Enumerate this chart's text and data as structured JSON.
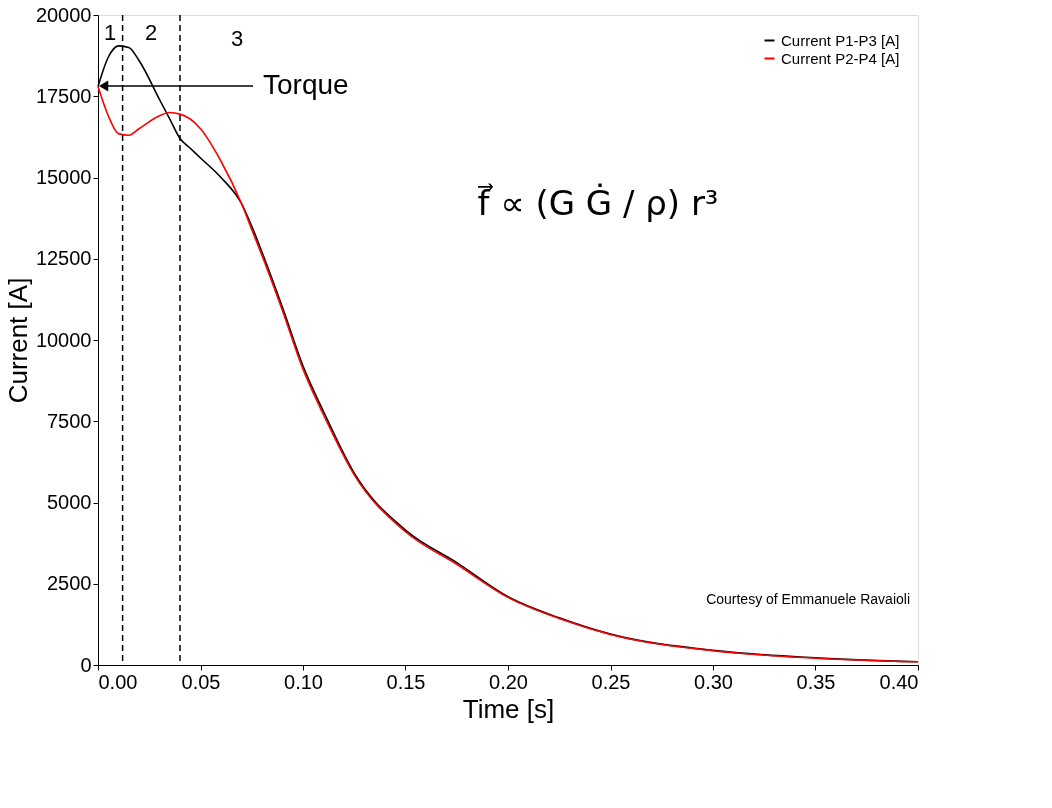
{
  "chart_data": {
    "type": "line",
    "xlabel": "Time [s]",
    "ylabel": "Current [A]",
    "xlim": [
      0,
      0.4
    ],
    "ylim": [
      0,
      20000
    ],
    "xticks": [
      {
        "value": 0,
        "label": "0.00"
      },
      {
        "value": 0.05,
        "label": "0.05"
      },
      {
        "value": 0.1,
        "label": "0.10"
      },
      {
        "value": 0.15,
        "label": "0.15"
      },
      {
        "value": 0.2,
        "label": "0.20"
      },
      {
        "value": 0.25,
        "label": "0.25"
      },
      {
        "value": 0.3,
        "label": "0.30"
      },
      {
        "value": 0.35,
        "label": "0.35"
      },
      {
        "value": 0.4,
        "label": "0.40"
      }
    ],
    "yticks": [
      0,
      2500,
      5000,
      7500,
      10000,
      12500,
      15000,
      17500,
      20000
    ],
    "x": [
      0,
      0.005,
      0.01,
      0.015,
      0.02,
      0.03,
      0.035,
      0.04,
      0.045,
      0.05,
      0.06,
      0.07,
      0.075,
      0.08,
      0.09,
      0.1,
      0.11,
      0.125,
      0.15,
      0.175,
      0.2,
      0.225,
      0.25,
      0.3,
      0.35,
      0.4
    ],
    "series": [
      {
        "name": "Current P1-P3 [A]",
        "color": "#000000",
        "values": [
          17800,
          18700,
          19050,
          19000,
          18600,
          17400,
          16800,
          16200,
          15900,
          15600,
          15000,
          14200,
          13500,
          12700,
          11000,
          9200,
          7800,
          5900,
          4150,
          3150,
          2100,
          1450,
          950,
          450,
          220,
          100
        ]
      },
      {
        "name": "Current P2-P4 [A]",
        "color": "#ff0000",
        "values": [
          17800,
          16900,
          16350,
          16300,
          16500,
          16900,
          17000,
          16950,
          16800,
          16500,
          15500,
          14200,
          13400,
          12600,
          10900,
          9100,
          7700,
          5850,
          4100,
          3100,
          2080,
          1430,
          940,
          440,
          210,
          100
        ]
      }
    ],
    "ref_lines": [
      {
        "axis": "x",
        "value": 0.012,
        "line_style": "dashed",
        "color": "#000000"
      },
      {
        "axis": "x",
        "value": 0.04,
        "line_style": "dashed",
        "color": "#000000"
      }
    ],
    "annotations": [
      "1",
      "2",
      "3",
      "Torque",
      "f⃗ ∝ (G Ġ / ρ) r³",
      "Courtesy of Emmanuele Ravaioli"
    ],
    "legend": "top right",
    "grid": false,
    "marker": "none",
    "line_style": "solid"
  }
}
